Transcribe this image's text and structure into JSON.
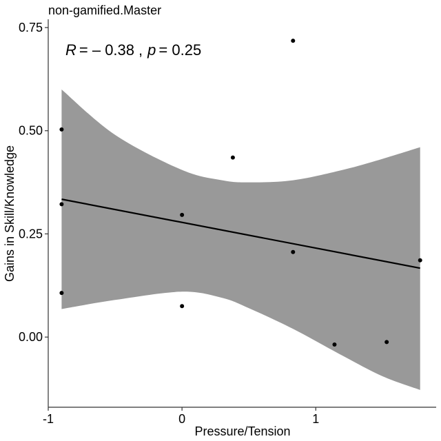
{
  "chart_data": {
    "type": "scatter",
    "title": "non-gamified.Master",
    "xlabel": "Pressure/Tension",
    "ylabel": "Gains in Skill/Knowledge",
    "annotation": {
      "r_label": "R",
      "r_value": "= – 0.38",
      "separator": ",",
      "p_label": "p",
      "p_value": "= 0.25"
    },
    "xlim": [
      -1.0,
      1.9
    ],
    "ylim": [
      -0.17,
      0.77
    ],
    "x_ticks": [
      {
        "value": -1,
        "label": "-1"
      },
      {
        "value": 0,
        "label": "0"
      },
      {
        "value": 1,
        "label": "1"
      }
    ],
    "y_ticks": [
      {
        "value": 0.0,
        "label": "0.00"
      },
      {
        "value": 0.25,
        "label": "0.25"
      },
      {
        "value": 0.5,
        "label": "0.50"
      },
      {
        "value": 0.75,
        "label": "0.75"
      }
    ],
    "points": [
      {
        "x": -0.9,
        "y": 0.503
      },
      {
        "x": -0.9,
        "y": 0.322
      },
      {
        "x": -0.9,
        "y": 0.107
      },
      {
        "x": 0.0,
        "y": 0.296
      },
      {
        "x": 0.0,
        "y": 0.075
      },
      {
        "x": 0.38,
        "y": 0.435
      },
      {
        "x": 0.83,
        "y": 0.718
      },
      {
        "x": 0.83,
        "y": 0.206
      },
      {
        "x": 1.14,
        "y": -0.018
      },
      {
        "x": 1.53,
        "y": -0.012
      },
      {
        "x": 1.78,
        "y": 0.186
      }
    ],
    "regression": {
      "x": [
        -0.9,
        1.78
      ],
      "y": [
        0.334,
        0.167
      ]
    },
    "confidence_band": {
      "x": [
        -0.9,
        -0.5,
        0.0,
        0.3,
        0.5,
        0.83,
        1.2,
        1.5,
        1.78
      ],
      "upper": [
        0.6,
        0.49,
        0.405,
        0.38,
        0.375,
        0.38,
        0.405,
        0.432,
        0.46
      ],
      "lower": [
        0.068,
        0.09,
        0.11,
        0.095,
        0.07,
        0.02,
        -0.045,
        -0.095,
        -0.128
      ]
    },
    "grid": false,
    "colors": {
      "band": "#999999",
      "line": "#000000",
      "point": "#000000",
      "axis": "#333333"
    }
  }
}
